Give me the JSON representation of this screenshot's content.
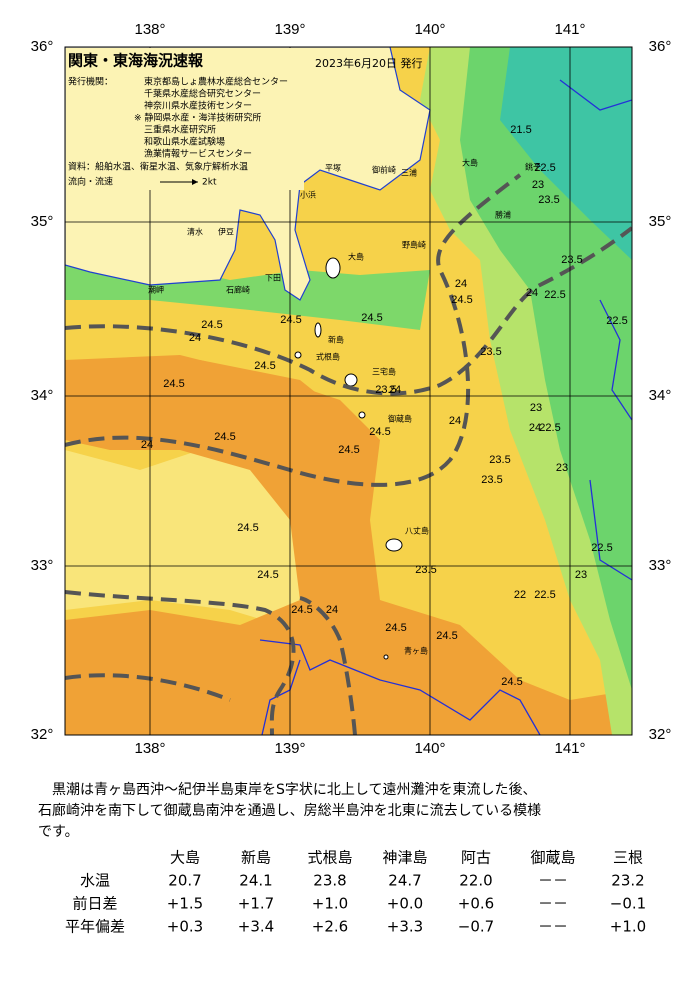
{
  "map": {
    "title": "関東・東海海況速報",
    "date": "2023年6月20日 発行",
    "issuer_label": "発行機関：",
    "issuers": [
      "東京都島しょ農林水産総合センター",
      "千葉県水産総合研究センター",
      "神奈川県水産技術センター",
      "※ 静岡県水産・海洋技術研究所",
      "三重県水産研究所",
      "和歌山県水産試験場",
      "漁業情報サービスセンター"
    ],
    "source": "資料：船舶水温、衛星水温、気象庁解析水温",
    "legend_label": "流向・流速",
    "legend_speed": "2kt",
    "lon_labels": [
      "138°",
      "139°",
      "140°",
      "141°"
    ],
    "lat_labels": [
      "36°",
      "35°",
      "34°",
      "33°",
      "32°"
    ],
    "place_names": [
      "大島",
      "新島",
      "式根島",
      "三宅島",
      "御蔵島",
      "八丈島",
      "青ヶ島",
      "伊豆",
      "清水",
      "下田",
      "石廊崎",
      "勝浦",
      "銚子",
      "野島崎",
      "大島",
      "小浜",
      "潮岬",
      "御前崎",
      "三浦",
      "平塚"
    ],
    "contour_labels": [
      "22.5",
      "23",
      "23.5",
      "23.5",
      "24",
      "24.5",
      "24",
      "24.5",
      "24.5",
      "24.5",
      "24",
      "24.5",
      "24.5",
      "24",
      "23.5",
      "24",
      "24.5",
      "24.5",
      "24",
      "24.5",
      "24.5",
      "24.5",
      "24",
      "23.5",
      "22.5",
      "22.5",
      "24",
      "24.5",
      "23.5",
      "23",
      "22.5",
      "23.5",
      "23",
      "22.5",
      "24.5",
      "24.5",
      "23",
      "23.5",
      "22",
      "21.5",
      "22.5",
      "24.5"
    ]
  },
  "description": [
    "黒潮は青ヶ島西沖～紀伊半島東岸をS字状に北上して遠州灘沖を東流した後、",
    "石廊崎沖を南下して御蔵島南沖を通過し、房総半島沖を北東に流去している模様",
    "です。"
  ],
  "table": {
    "columns": [
      "大島",
      "新島",
      "式根島",
      "神津島",
      "阿古",
      "御蔵島",
      "三根"
    ],
    "rows": [
      {
        "label": "水温",
        "values": [
          "20.7",
          "24.1",
          "23.8",
          "24.7",
          "22.0",
          "－－",
          "23.2"
        ]
      },
      {
        "label": "前日差",
        "values": [
          "+1.5",
          "+1.7",
          "+1.0",
          "+0.0",
          "+0.6",
          "－－",
          "−0.1"
        ]
      },
      {
        "label": "平年偏差",
        "values": [
          "+0.3",
          "+3.4",
          "+2.6",
          "+3.3",
          "−0.7",
          "－－",
          "+1.0"
        ]
      }
    ]
  }
}
